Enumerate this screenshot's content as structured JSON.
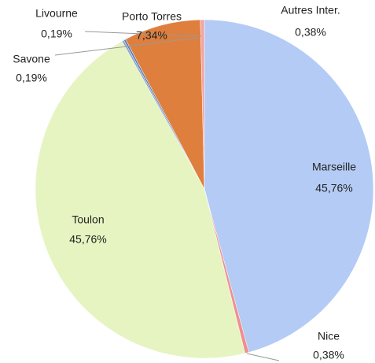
{
  "chart_data": {
    "type": "pie",
    "categories": [
      "Marseille",
      "Nice",
      "Toulon",
      "Savone",
      "Livourne",
      "Porto Torres",
      "Autres Inter."
    ],
    "values": [
      45.76,
      0.38,
      45.76,
      0.19,
      0.19,
      7.34,
      0.38
    ],
    "value_labels": [
      "45,76%",
      "0,38%",
      "45,76%",
      "0,19%",
      "0,19%",
      "7,34%",
      "0,38%"
    ],
    "colors": [
      "#b3cbf5",
      "#ef8f8f",
      "#e6f4c2",
      "#8ea7c9",
      "#5b7fb7",
      "#df7f3d",
      "#f3a5a5"
    ]
  }
}
